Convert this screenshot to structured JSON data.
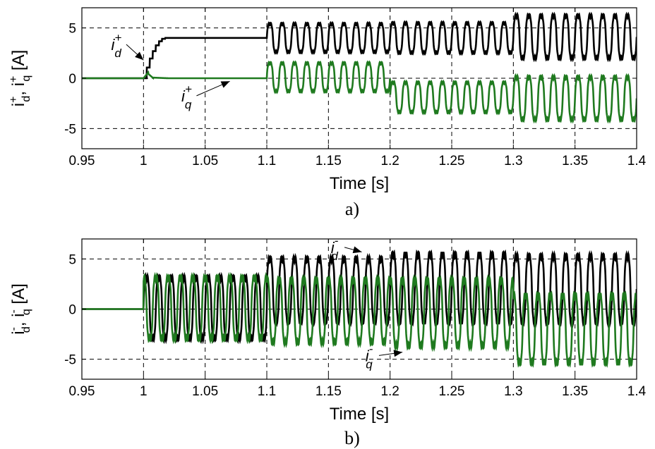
{
  "chart_data": [
    {
      "type": "line",
      "panel_label": "a)",
      "xlabel": "Time [s]",
      "ylabel": {
        "base": "i",
        "sup1": "+",
        "sub1": "d",
        "sep": ",",
        "sup2": "+",
        "sub2": "q",
        "unit": "[A]"
      },
      "xlim": [
        0.95,
        1.4
      ],
      "ylim": [
        -7,
        7
      ],
      "xticks": [
        "0.95",
        "1",
        "1.05",
        "1.1",
        "1.15",
        "1.2",
        "1.25",
        "1.3",
        "1.35",
        "1.4"
      ],
      "yticks": [
        "-5",
        "0",
        "5"
      ],
      "grid": "dashed",
      "series": [
        {
          "name": "i_d^+",
          "color": "#000000",
          "segments": [
            {
              "t0": 0.95,
              "t1": 1.0,
              "kind": "const",
              "value": 0
            },
            {
              "t0": 1.0,
              "t1": 1.02,
              "kind": "rise",
              "from": 0,
              "to": 4.0
            },
            {
              "t0": 1.02,
              "t1": 1.1,
              "kind": "const",
              "value": 4.0
            },
            {
              "t0": 1.1,
              "t1": 1.2,
              "kind": "osc",
              "mean": 4.0,
              "amp": 1.8,
              "freq": 100
            },
            {
              "t0": 1.2,
              "t1": 1.3,
              "kind": "osc",
              "mean": 4.0,
              "amp": 1.9,
              "freq": 100
            },
            {
              "t0": 1.3,
              "t1": 1.4,
              "kind": "osc",
              "mean": 4.1,
              "amp": 2.7,
              "freq": 100
            }
          ]
        },
        {
          "name": "i_q^+",
          "color": "#1f7a1f",
          "segments": [
            {
              "t0": 0.95,
              "t1": 1.0,
              "kind": "const",
              "value": 0
            },
            {
              "t0": 1.0,
              "t1": 1.02,
              "kind": "bump",
              "value": 0,
              "peak": 0.6
            },
            {
              "t0": 1.02,
              "t1": 1.1,
              "kind": "const",
              "value": 0
            },
            {
              "t0": 1.1,
              "t1": 1.2,
              "kind": "osc",
              "mean": 0.1,
              "amp": 1.8,
              "freq": 100
            },
            {
              "t0": 1.2,
              "t1": 1.3,
              "kind": "osc",
              "mean": -1.9,
              "amp": 1.9,
              "freq": 100
            },
            {
              "t0": 1.3,
              "t1": 1.4,
              "kind": "osc",
              "mean": -2.0,
              "amp": 2.7,
              "freq": 100
            }
          ]
        }
      ],
      "annotations": [
        {
          "base": "i",
          "sup": "+",
          "sub": "d",
          "at": [
            0.978,
            2.8
          ],
          "arrow_to": [
            1.0,
            1.8
          ]
        },
        {
          "base": "i",
          "sup": "+",
          "sub": "q",
          "at": [
            1.035,
            -2.3
          ],
          "arrow_to": [
            1.07,
            -0.3
          ]
        }
      ]
    },
    {
      "type": "line",
      "panel_label": "b)",
      "xlabel": "Time [s]",
      "ylabel": {
        "base": "i",
        "sup1": "-",
        "sub1": "d",
        "sep": ",",
        "sup2": "-",
        "sub2": "q",
        "unit": "[A]"
      },
      "xlim": [
        0.95,
        1.4
      ],
      "ylim": [
        -7,
        7
      ],
      "xticks": [
        "0.95",
        "1",
        "1.05",
        "1.1",
        "1.15",
        "1.2",
        "1.25",
        "1.3",
        "1.35",
        "1.4"
      ],
      "yticks": [
        "-5",
        "0",
        "5"
      ],
      "grid": "dashed",
      "series": [
        {
          "name": "i_d^-",
          "color": "#000000",
          "segments": [
            {
              "t0": 0.95,
              "t1": 1.0,
              "kind": "const",
              "value": 0
            },
            {
              "t0": 1.0,
              "t1": 1.1,
              "kind": "osc",
              "mean": 0.1,
              "amp": 3.9,
              "freq": 100
            },
            {
              "t0": 1.1,
              "t1": 1.2,
              "kind": "osc",
              "mean": 1.9,
              "amp": 4.0,
              "freq": 100
            },
            {
              "t0": 1.2,
              "t1": 1.3,
              "kind": "osc",
              "mean": 2.1,
              "amp": 4.3,
              "freq": 100
            },
            {
              "t0": 1.3,
              "t1": 1.4,
              "kind": "osc",
              "mean": 2.0,
              "amp": 4.2,
              "freq": 100
            }
          ]
        },
        {
          "name": "i_q^-",
          "color": "#1f7a1f",
          "segments": [
            {
              "t0": 0.95,
              "t1": 1.0,
              "kind": "const",
              "value": 0
            },
            {
              "t0": 1.0,
              "t1": 1.1,
              "kind": "osc",
              "mean": 0.1,
              "amp": 3.9,
              "freq": 100,
              "phase": 1.57
            },
            {
              "t0": 1.1,
              "t1": 1.2,
              "kind": "osc",
              "mean": -0.2,
              "amp": 4.0,
              "freq": 100,
              "phase": 1.57
            },
            {
              "t0": 1.2,
              "t1": 1.3,
              "kind": "osc",
              "mean": -0.4,
              "amp": 4.2,
              "freq": 100,
              "phase": 1.57
            },
            {
              "t0": 1.3,
              "t1": 1.4,
              "kind": "osc",
              "mean": -2.0,
              "amp": 4.3,
              "freq": 100,
              "phase": 1.57
            }
          ]
        }
      ],
      "annotations": [
        {
          "base": "i",
          "sup": "-",
          "sub": "d",
          "at": [
            1.155,
            5.6
          ],
          "arrow_to": [
            1.177,
            5.7
          ]
        },
        {
          "base": "i",
          "sup": "-",
          "sub": "q",
          "at": [
            1.183,
            -5.2
          ],
          "arrow_to": [
            1.21,
            -4.3
          ]
        }
      ]
    }
  ]
}
